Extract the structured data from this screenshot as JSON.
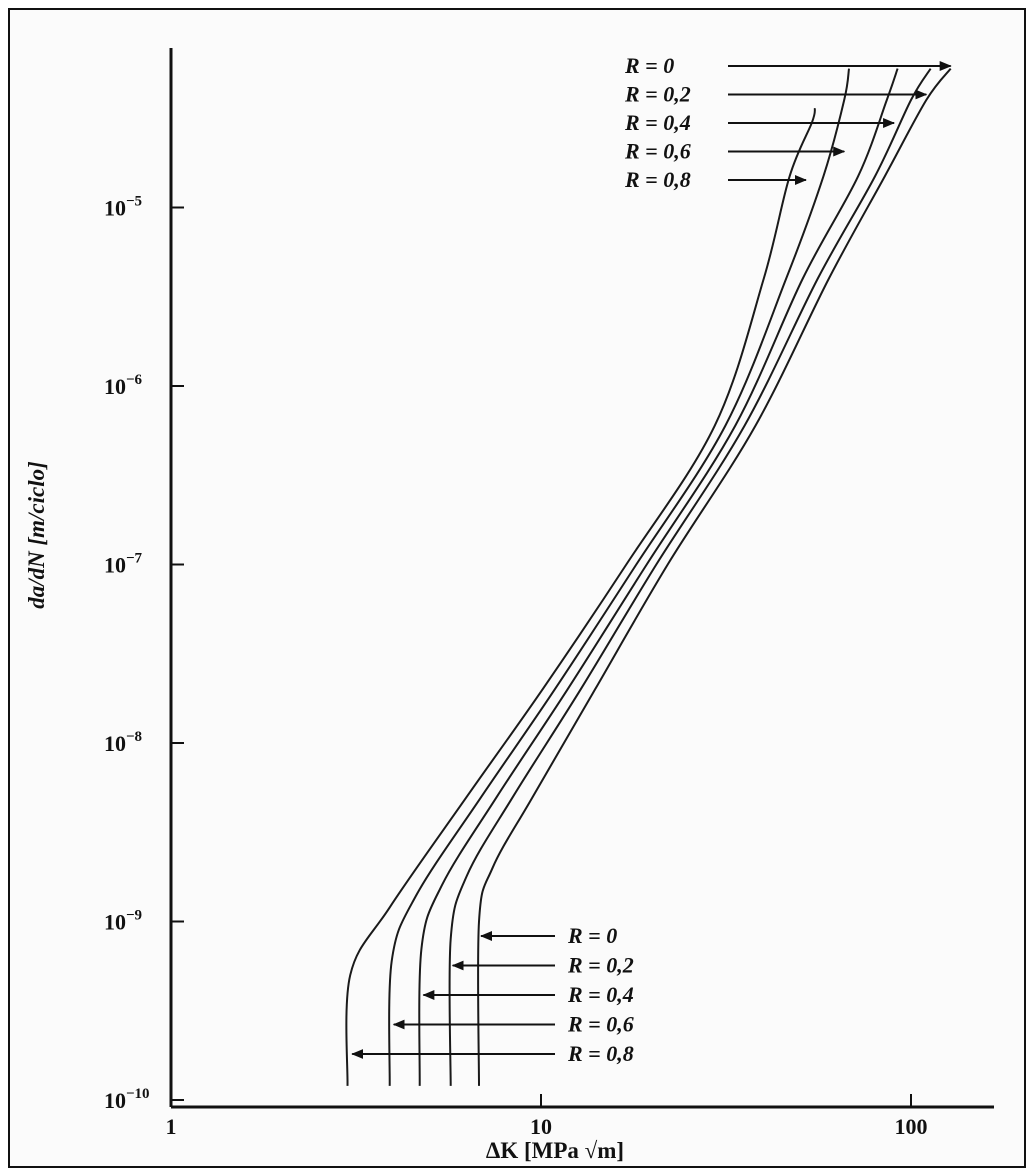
{
  "chart_data": {
    "type": "line",
    "x_scale": "log",
    "y_scale": "log",
    "xlabel": "ΔK [MPa √m]",
    "ylabel": "da/dN [m/ciclo]",
    "xlim": [
      1,
      200
    ],
    "ylim": [
      1e-10,
      6e-05
    ],
    "x_ticks": [
      {
        "value": 1,
        "label": "1"
      },
      {
        "value": 10,
        "label": "10"
      },
      {
        "value": 100,
        "label": "100"
      }
    ],
    "y_ticks": [
      {
        "value": 1e-10,
        "mantissa": "10",
        "exponent": "−10"
      },
      {
        "value": 1e-09,
        "mantissa": "10",
        "exponent": "−9"
      },
      {
        "value": 1e-08,
        "mantissa": "10",
        "exponent": "−8"
      },
      {
        "value": 1e-07,
        "mantissa": "10",
        "exponent": "−7"
      },
      {
        "value": 1e-06,
        "mantissa": "10",
        "exponent": "−6"
      },
      {
        "value": 1e-05,
        "mantissa": "10",
        "exponent": "−5"
      }
    ],
    "grid": false,
    "series": [
      {
        "name": "R = 0",
        "x": [
          6.8,
          6.8,
          7.4,
          9.5,
          14,
          22,
          38,
          60,
          85,
          110,
          128
        ],
        "y": [
          1.2e-10,
          1e-09,
          2e-09,
          5e-09,
          2e-08,
          1e-07,
          6e-07,
          4e-06,
          1.5e-05,
          4e-05,
          6e-05
        ]
      },
      {
        "name": "R = 0,2",
        "x": [
          5.7,
          5.7,
          6.3,
          8.4,
          12.8,
          20.5,
          35.5,
          56,
          80,
          100,
          113
        ],
        "y": [
          1.2e-10,
          8e-10,
          1.8e-09,
          5e-09,
          2e-08,
          1e-07,
          6e-07,
          4e-06,
          1.5e-05,
          4e-05,
          6e-05
        ]
      },
      {
        "name": "R = 0,4",
        "x": [
          4.7,
          4.75,
          5.4,
          7.6,
          11.8,
          19.3,
          33.5,
          51,
          72,
          86,
          92
        ],
        "y": [
          1.2e-10,
          7e-10,
          1.6e-09,
          5e-09,
          2e-08,
          1e-07,
          6e-07,
          4e-06,
          1.5e-05,
          4e-05,
          6e-05
        ]
      },
      {
        "name": "R = 0,6",
        "x": [
          3.9,
          3.95,
          4.6,
          6.9,
          10.9,
          18.1,
          31.5,
          46,
          58,
          66,
          68
        ],
        "y": [
          1.2e-10,
          6e-10,
          1.4e-09,
          5e-09,
          2e-08,
          1e-07,
          6e-07,
          4e-06,
          1.5e-05,
          4e-05,
          6e-05
        ]
      },
      {
        "name": "R = 0,8",
        "x": [
          3.0,
          3.05,
          3.9,
          6.3,
          10.1,
          17,
          29.5,
          40,
          47,
          54,
          55
        ],
        "y": [
          1.2e-10,
          5e-10,
          1.2e-09,
          5e-09,
          2e-08,
          1e-07,
          6e-07,
          4e-06,
          1.5e-05,
          3e-05,
          3.6e-05
        ]
      }
    ],
    "annotations_top": [
      {
        "label": "R = 0",
        "target_x": 128,
        "target_y": 4.8e-05
      },
      {
        "label": "R = 0,2",
        "target_x": 110,
        "target_y": 3.4e-05
      },
      {
        "label": "R = 0,4",
        "target_x": 90,
        "target_y": 2.3e-05
      },
      {
        "label": "R = 0,6",
        "target_x": 66,
        "target_y": 1.6e-05
      },
      {
        "label": "R = 0,8",
        "target_x": 52,
        "target_y": 1.1e-05
      }
    ],
    "annotations_bottom": [
      {
        "label": "R = 0",
        "target_x": 6.8,
        "target_y": 7e-10
      },
      {
        "label": "R = 0,2",
        "target_x": 5.7,
        "target_y": 5e-10
      },
      {
        "label": "R = 0,4",
        "target_x": 4.75,
        "target_y": 3.5e-10
      },
      {
        "label": "R = 0,6",
        "target_x": 3.95,
        "target_y": 2.5e-10
      },
      {
        "label": "R = 0,8",
        "target_x": 3.05,
        "target_y": 1.7e-10
      }
    ]
  }
}
